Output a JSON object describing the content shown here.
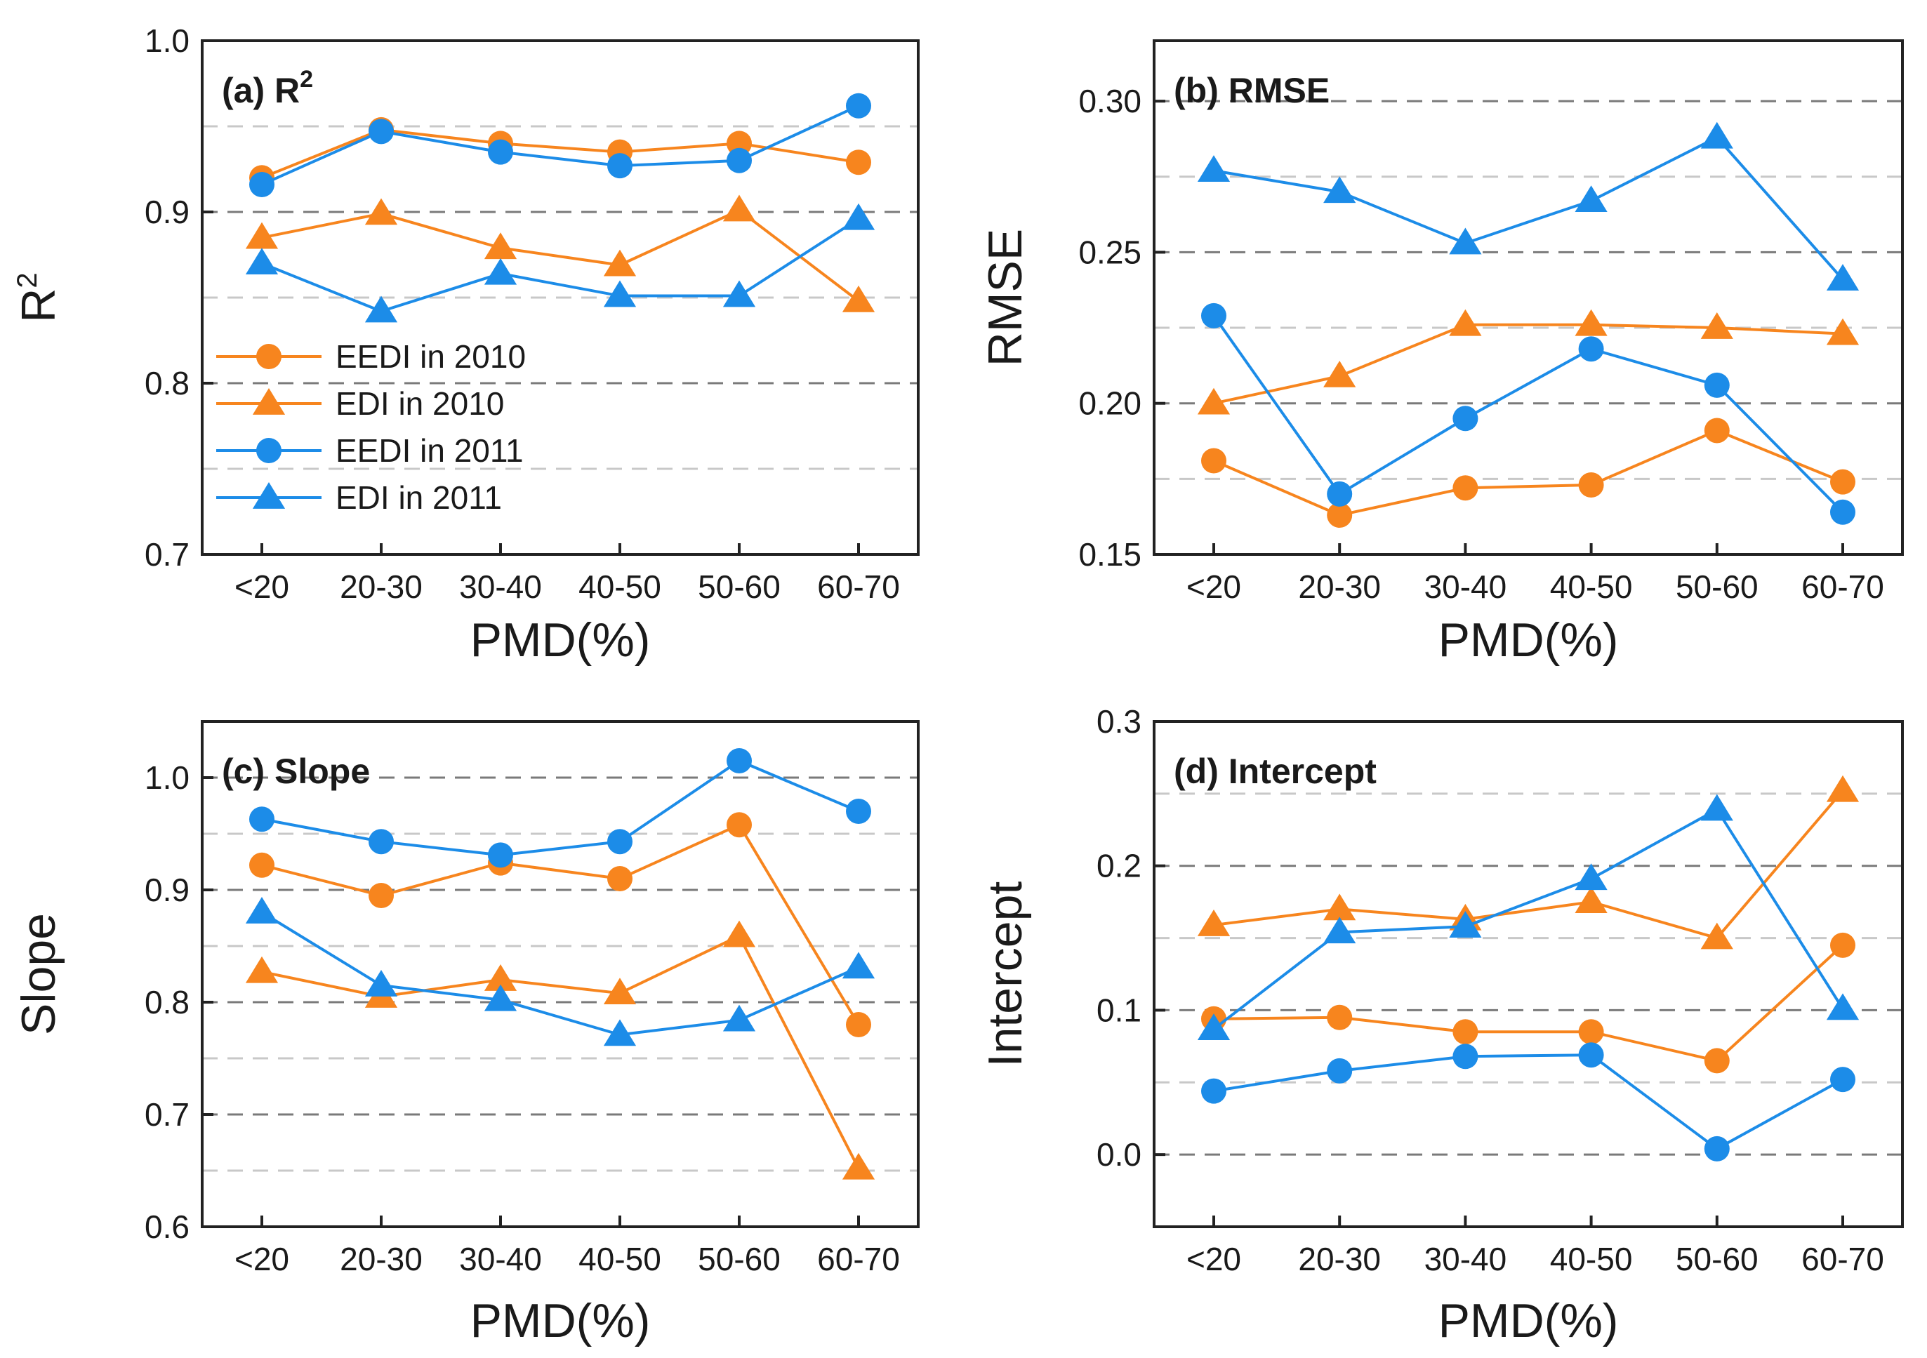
{
  "colors": {
    "orange": "#f7851e",
    "blue": "#1c8ce8",
    "grid_major": "#7a7a7a",
    "grid_minor": "#c8c8c8",
    "axis": "#222222"
  },
  "legend": [
    {
      "label": "EEDI in 2010",
      "color": "#f7851e",
      "marker": "circle"
    },
    {
      "label": "EDI in 2010",
      "color": "#f7851e",
      "marker": "triangle"
    },
    {
      "label": "EEDI in 2011",
      "color": "#1c8ce8",
      "marker": "circle"
    },
    {
      "label": "EDI in 2011",
      "color": "#1c8ce8",
      "marker": "triangle"
    }
  ],
  "chart_data": [
    {
      "id": "a",
      "type": "line",
      "title": "(a) R",
      "title_sup": "2",
      "xlabel": "PMD(%)",
      "ylabel": "R",
      "ylabel_sup": "2",
      "categories": [
        "<20",
        "20-30",
        "30-40",
        "40-50",
        "50-60",
        "60-70"
      ],
      "ylim": [
        0.7,
        1.0
      ],
      "yticks": [
        0.7,
        0.8,
        0.9,
        1.0
      ],
      "ytick_labels": [
        "0.7",
        "0.8",
        "0.9",
        "1.0"
      ],
      "grid_major": [
        0.8,
        0.9
      ],
      "grid_minor": [
        0.75,
        0.85,
        0.95
      ],
      "legend_shown": true,
      "series": [
        {
          "name": "EEDI in 2010",
          "color": "#f7851e",
          "marker": "circle",
          "values": [
            0.92,
            0.948,
            0.94,
            0.935,
            0.94,
            0.929
          ]
        },
        {
          "name": "EDI in 2010",
          "color": "#f7851e",
          "marker": "triangle",
          "values": [
            0.885,
            0.899,
            0.879,
            0.869,
            0.901,
            0.848
          ]
        },
        {
          "name": "EEDI in 2011",
          "color": "#1c8ce8",
          "marker": "circle",
          "values": [
            0.916,
            0.947,
            0.935,
            0.927,
            0.93,
            0.962
          ]
        },
        {
          "name": "EDI in 2011",
          "color": "#1c8ce8",
          "marker": "triangle",
          "values": [
            0.87,
            0.842,
            0.864,
            0.851,
            0.851,
            0.896
          ]
        }
      ]
    },
    {
      "id": "b",
      "type": "line",
      "title": "(b) RMSE",
      "xlabel": "PMD(%)",
      "ylabel": "RMSE",
      "categories": [
        "<20",
        "20-30",
        "30-40",
        "40-50",
        "50-60",
        "60-70"
      ],
      "ylim": [
        0.15,
        0.32
      ],
      "yticks": [
        0.15,
        0.2,
        0.25,
        0.3
      ],
      "ytick_labels": [
        "0.15",
        "0.20",
        "0.25",
        "0.30"
      ],
      "grid_major": [
        0.2,
        0.25,
        0.3
      ],
      "grid_minor": [
        0.175,
        0.225,
        0.275
      ],
      "legend_shown": false,
      "series": [
        {
          "name": "EEDI in 2010",
          "color": "#f7851e",
          "marker": "circle",
          "values": [
            0.181,
            0.163,
            0.172,
            0.173,
            0.191,
            0.174
          ]
        },
        {
          "name": "EDI in 2010",
          "color": "#f7851e",
          "marker": "triangle",
          "values": [
            0.2,
            0.209,
            0.226,
            0.226,
            0.225,
            0.223
          ]
        },
        {
          "name": "EEDI in 2011",
          "color": "#1c8ce8",
          "marker": "circle",
          "values": [
            0.229,
            0.17,
            0.195,
            0.218,
            0.206,
            0.164
          ]
        },
        {
          "name": "EDI in 2011",
          "color": "#1c8ce8",
          "marker": "triangle",
          "values": [
            0.277,
            0.27,
            0.253,
            0.267,
            0.288,
            0.241
          ]
        }
      ]
    },
    {
      "id": "c",
      "type": "line",
      "title": "(c) Slope",
      "xlabel": "PMD(%)",
      "ylabel": "Slope",
      "categories": [
        "<20",
        "20-30",
        "30-40",
        "40-50",
        "50-60",
        "60-70"
      ],
      "ylim": [
        0.6,
        1.05
      ],
      "yticks": [
        0.6,
        0.7,
        0.8,
        0.9,
        1.0
      ],
      "ytick_labels": [
        "0.6",
        "0.7",
        "0.8",
        "0.9",
        "1.0"
      ],
      "grid_major": [
        0.7,
        0.8,
        0.9,
        1.0
      ],
      "grid_minor": [
        0.65,
        0.75,
        0.85,
        0.95
      ],
      "legend_shown": false,
      "series": [
        {
          "name": "EEDI in 2010",
          "color": "#f7851e",
          "marker": "circle",
          "values": [
            0.922,
            0.895,
            0.924,
            0.91,
            0.958,
            0.78
          ]
        },
        {
          "name": "EDI in 2010",
          "color": "#f7851e",
          "marker": "triangle",
          "values": [
            0.827,
            0.805,
            0.82,
            0.808,
            0.859,
            0.652
          ]
        },
        {
          "name": "EEDI in 2011",
          "color": "#1c8ce8",
          "marker": "circle",
          "values": [
            0.963,
            0.943,
            0.931,
            0.943,
            1.015,
            0.97
          ]
        },
        {
          "name": "EDI in 2011",
          "color": "#1c8ce8",
          "marker": "triangle",
          "values": [
            0.88,
            0.815,
            0.802,
            0.771,
            0.784,
            0.831
          ]
        }
      ]
    },
    {
      "id": "d",
      "type": "line",
      "title": "(d) Intercept",
      "xlabel": "PMD(%)",
      "ylabel": "Intercept",
      "categories": [
        "<20",
        "20-30",
        "30-40",
        "40-50",
        "50-60",
        "60-70"
      ],
      "ylim": [
        -0.05,
        0.3
      ],
      "yticks": [
        0.0,
        0.1,
        0.2,
        0.3
      ],
      "ytick_labels": [
        "0.0",
        "0.1",
        "0.2",
        "0.3"
      ],
      "grid_major": [
        0.0,
        0.1,
        0.2
      ],
      "grid_minor": [
        0.05,
        0.15,
        0.25
      ],
      "legend_shown": false,
      "series": [
        {
          "name": "EEDI in 2010",
          "color": "#f7851e",
          "marker": "circle",
          "values": [
            0.094,
            0.095,
            0.085,
            0.085,
            0.065,
            0.145
          ]
        },
        {
          "name": "EDI in 2010",
          "color": "#f7851e",
          "marker": "triangle",
          "values": [
            0.159,
            0.17,
            0.163,
            0.175,
            0.15,
            0.252
          ]
        },
        {
          "name": "EEDI in 2011",
          "color": "#1c8ce8",
          "marker": "circle",
          "values": [
            0.044,
            0.058,
            0.068,
            0.069,
            0.004,
            0.052
          ]
        },
        {
          "name": "EDI in 2011",
          "color": "#1c8ce8",
          "marker": "triangle",
          "values": [
            0.087,
            0.154,
            0.158,
            0.191,
            0.239,
            0.101
          ]
        }
      ]
    }
  ]
}
